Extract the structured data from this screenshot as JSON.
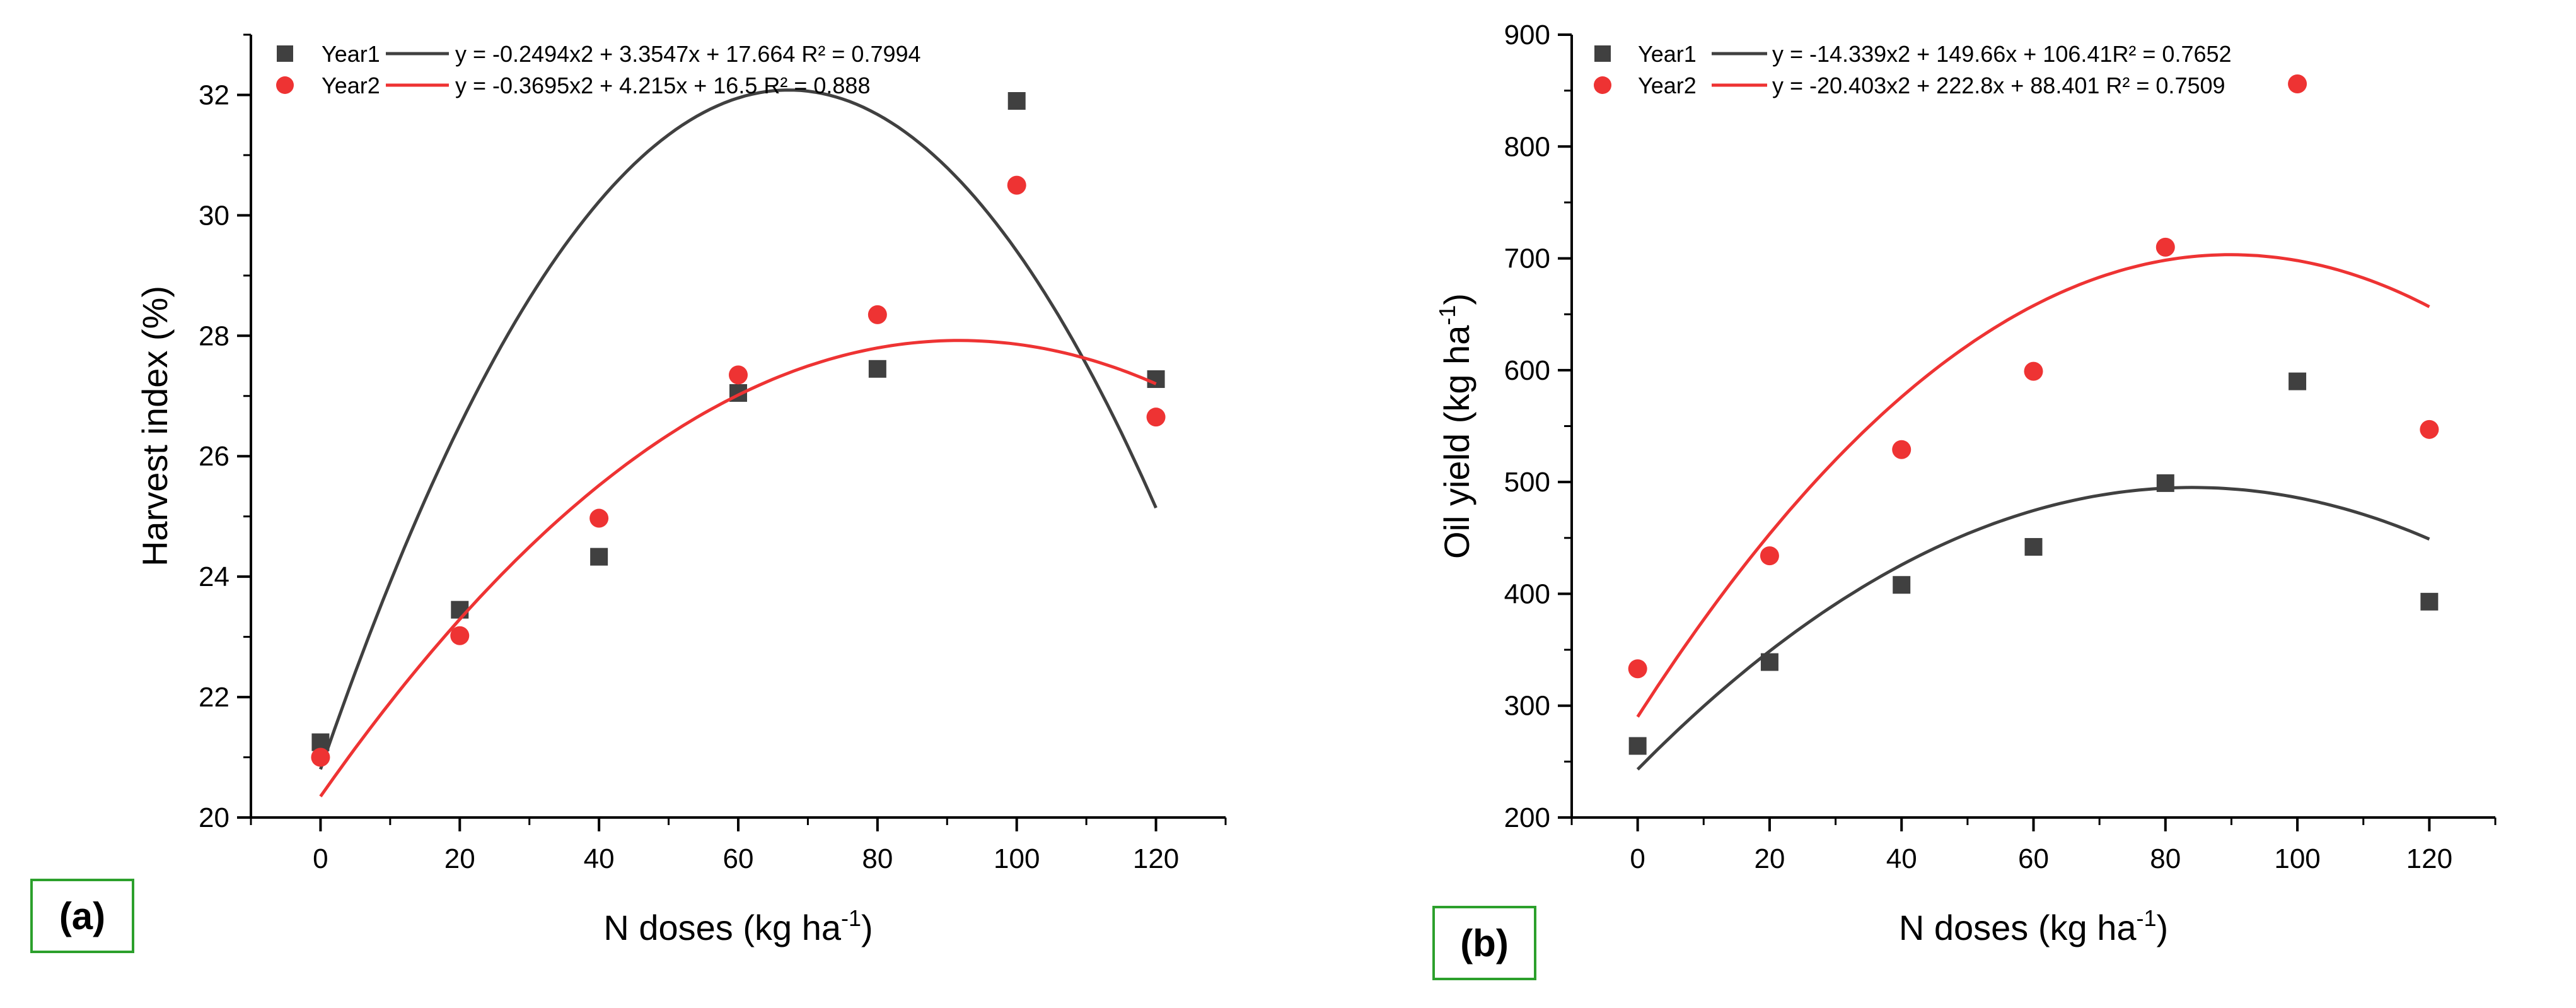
{
  "colors": {
    "year1": "#404040",
    "year2": "#ee3333",
    "label_border": "#2ca02c"
  },
  "chart_data": [
    {
      "type": "scatter",
      "panel_label": "(a)",
      "xlabel": "N doses (kg ha",
      "xlabel_sup": "-1",
      "xlabel_end": ")",
      "ylabel": "Harvest index (%)",
      "ylabel_sup": "",
      "ylabel_end": "",
      "xlim": [
        -10,
        130
      ],
      "ylim": [
        20,
        33
      ],
      "xticks": [
        0,
        20,
        40,
        60,
        80,
        100,
        120
      ],
      "yticks": [
        20,
        22,
        24,
        26,
        28,
        30,
        32
      ],
      "xtick_labels": [
        "0",
        "20",
        "40",
        "60",
        "80",
        "100",
        "120"
      ],
      "ytick_labels": [
        "20",
        "22",
        "24",
        "26",
        "28",
        "30",
        "32"
      ],
      "series": [
        {
          "name": "Year1",
          "marker": "square",
          "color": "#404040",
          "x": [
            0,
            20,
            40,
            60,
            80,
            100,
            120
          ],
          "y": [
            21.25,
            23.45,
            24.33,
            27.05,
            27.45,
            31.9,
            27.28
          ],
          "fit": {
            "a": -0.002494,
            "b": 0.33547,
            "c": 20.8,
            "x_range": [
              0,
              120
            ]
          },
          "equation": "y = -0.2494x2 + 3.3547x + 17.664 R² = 0.7994"
        },
        {
          "name": "Year2",
          "marker": "circle",
          "color": "#ee3333",
          "x": [
            0,
            20,
            40,
            60,
            80,
            100,
            120
          ],
          "y": [
            21.0,
            23.02,
            24.97,
            27.35,
            28.35,
            30.5,
            26.65
          ],
          "fit": {
            "a": -0.0009,
            "b": 0.1651,
            "c": 20.35,
            "x_range": [
              0,
              120
            ]
          },
          "equation": "y = -0.3695x2 + 4.215x + 16.5    R² = 0.888"
        }
      ]
    },
    {
      "type": "scatter",
      "panel_label": "(b)",
      "xlabel": "N doses (kg ha",
      "xlabel_sup": "-1",
      "xlabel_end": ")",
      "ylabel": "Oil yield (kg ha",
      "ylabel_sup": "-1",
      "ylabel_end": ")",
      "xlim": [
        -10,
        130
      ],
      "ylim": [
        200,
        900
      ],
      "xticks": [
        0,
        20,
        40,
        60,
        80,
        100,
        120
      ],
      "yticks": [
        200,
        300,
        400,
        500,
        600,
        700,
        800,
        900
      ],
      "xtick_labels": [
        "0",
        "20",
        "40",
        "60",
        "80",
        "100",
        "120"
      ],
      "ytick_labels": [
        "200",
        "300",
        "400",
        "500",
        "600",
        "700",
        "800",
        "900"
      ],
      "series": [
        {
          "name": "Year1",
          "marker": "square",
          "color": "#404040",
          "x": [
            0,
            20,
            40,
            60,
            80,
            100,
            120
          ],
          "y": [
            264,
            339,
            408,
            442,
            499,
            590,
            393
          ],
          "fit": {
            "a": -0.0357,
            "b": 6.0,
            "c": 243,
            "x_range": [
              0,
              120
            ]
          },
          "equation": "y = -14.339x2 + 149.66x + 106.41R² = 0.7652"
        },
        {
          "name": "Year2",
          "marker": "circle",
          "color": "#ee3333",
          "x": [
            0,
            20,
            40,
            60,
            80,
            100,
            120
          ],
          "y": [
            333,
            434,
            529,
            599,
            710,
            856,
            547
          ],
          "fit": {
            "a": -0.0512,
            "b": 9.2,
            "c": 290,
            "x_range": [
              0,
              120
            ]
          },
          "equation": "y = -20.403x2 + 222.8x + 88.401 R² = 0.7509"
        }
      ]
    }
  ]
}
